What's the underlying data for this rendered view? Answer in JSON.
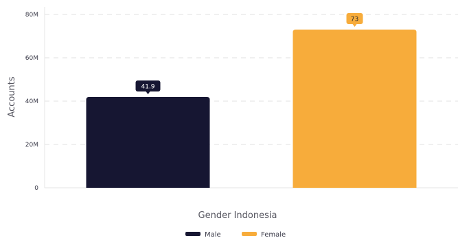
{
  "chart_data": {
    "type": "bar",
    "categories": [
      "Male",
      "Female"
    ],
    "values": [
      41.9,
      73
    ],
    "data_labels": [
      "41.9",
      "73"
    ],
    "colors": [
      "#161632",
      "#F7AC3B"
    ],
    "ylabel": "Accounts",
    "xlabel": "Gender Indonesia",
    "ylim": [
      0,
      80
    ],
    "yticks": [
      0,
      20,
      40,
      60,
      80
    ],
    "ytick_labels": [
      "0",
      "20M",
      "40M",
      "60M",
      "80M"
    ],
    "grid": true,
    "legend": {
      "placement": "bottom-center",
      "entries": [
        {
          "label": "Male",
          "color": "#161632"
        },
        {
          "label": "Female",
          "color": "#F7AC3B"
        }
      ]
    }
  }
}
